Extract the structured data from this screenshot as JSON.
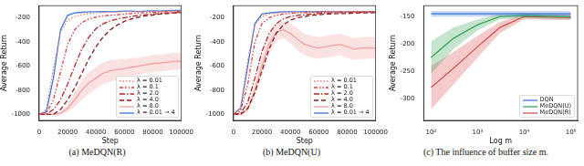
{
  "chart_data": [
    {
      "type": "line",
      "title": "(a) MeDQN(R)",
      "x_label": "Step",
      "y_label": "Average Return",
      "x": [
        0,
        5000,
        10000,
        15000,
        20000,
        25000,
        30000,
        35000,
        40000,
        45000,
        50000,
        55000,
        60000,
        65000,
        70000,
        75000,
        80000,
        85000,
        90000,
        95000,
        100000
      ],
      "xlim": [
        0,
        100000
      ],
      "xticks": [
        0,
        20000,
        40000,
        60000,
        80000,
        100000
      ],
      "ylim": [
        -1050,
        -100
      ],
      "yticks": [
        -1000,
        -800,
        -600,
        -400,
        -200
      ],
      "grid": false,
      "legend": "lower right",
      "series": [
        {
          "name": "λ = 0.01",
          "color": "#f07c7c",
          "line_style": "dotted",
          "values": [
            -1000,
            -960,
            -620,
            -320,
            -220,
            -190,
            -175,
            -165,
            -160,
            -158,
            -155,
            -152,
            -150,
            -150,
            -150,
            -148,
            -147,
            -145,
            -145,
            -145,
            -145
          ]
        },
        {
          "name": "λ = 0.1",
          "color": "#e03a3a",
          "line_style": "dashdotdot",
          "values": [
            -1000,
            -990,
            -880,
            -650,
            -420,
            -300,
            -240,
            -210,
            -195,
            -185,
            -180,
            -175,
            -170,
            -165,
            -160,
            -158,
            -155,
            -152,
            -150,
            -150,
            -148
          ]
        },
        {
          "name": "λ = 2.0",
          "color": "#b82525",
          "line_style": "dashdot",
          "values": [
            -1000,
            -1000,
            -960,
            -880,
            -750,
            -600,
            -460,
            -360,
            -290,
            -250,
            -225,
            -210,
            -200,
            -190,
            -180,
            -175,
            -170,
            -165,
            -160,
            -158,
            -155
          ]
        },
        {
          "name": "λ = 4.0",
          "color": "#8c1a1a",
          "line_style": "dashed",
          "values": [
            -1000,
            -1000,
            -1000,
            -960,
            -880,
            -780,
            -660,
            -540,
            -440,
            -360,
            -300,
            -260,
            -230,
            -210,
            -195,
            -185,
            -178,
            -170,
            -165,
            -160,
            -158
          ]
        },
        {
          "name": "λ = 8.0",
          "color": "#f2a0a0",
          "line_style": "solid",
          "values": [
            -1000,
            -1000,
            -1000,
            -990,
            -950,
            -880,
            -800,
            -740,
            -700,
            -660,
            -640,
            -630,
            -620,
            -610,
            -600,
            -590,
            -580,
            -575,
            -570,
            -560,
            -560
          ],
          "error": [
            0,
            0,
            0,
            10,
            30,
            60,
            80,
            90,
            90,
            90,
            90,
            85,
            80,
            75,
            70,
            70,
            70,
            70,
            70,
            70,
            70
          ]
        },
        {
          "name": "λ = 0.01 → 4",
          "color": "#3c78d8",
          "line_style": "solid",
          "values": [
            -1000,
            -980,
            -700,
            -300,
            -180,
            -160,
            -155,
            -150,
            -150,
            -148,
            -150,
            -148,
            -145,
            -145,
            -148,
            -145,
            -143,
            -145,
            -142,
            -140,
            -140
          ]
        }
      ]
    },
    {
      "type": "line",
      "title": "(b) MeDQN(U)",
      "x_label": "Step",
      "y_label": "Average Return",
      "x": [
        0,
        5000,
        10000,
        15000,
        20000,
        25000,
        30000,
        35000,
        40000,
        45000,
        50000,
        55000,
        60000,
        65000,
        70000,
        75000,
        80000,
        85000,
        90000,
        95000,
        100000
      ],
      "xlim": [
        0,
        100000
      ],
      "xticks": [
        0,
        20000,
        40000,
        60000,
        80000,
        100000
      ],
      "ylim": [
        -1050,
        -100
      ],
      "yticks": [
        -1000,
        -800,
        -600,
        -400,
        -200
      ],
      "grid": false,
      "legend": "lower right",
      "series": [
        {
          "name": "λ = 0.01",
          "color": "#f07c7c",
          "line_style": "dotted",
          "values": [
            -1000,
            -940,
            -550,
            -260,
            -190,
            -170,
            -160,
            -158,
            -155,
            -155,
            -152,
            -150,
            -150,
            -150,
            -152,
            -150,
            -150,
            -150,
            -150,
            -150,
            -150
          ]
        },
        {
          "name": "λ = 0.1",
          "color": "#e03a3a",
          "line_style": "dashdotdot",
          "values": [
            -1000,
            -970,
            -750,
            -400,
            -250,
            -200,
            -180,
            -170,
            -165,
            -160,
            -158,
            -155,
            -155,
            -152,
            -150,
            -150,
            -150,
            -150,
            -150,
            -150,
            -150
          ]
        },
        {
          "name": "λ = 2.0",
          "color": "#b82525",
          "line_style": "dashdot",
          "values": [
            -1000,
            -990,
            -900,
            -700,
            -480,
            -330,
            -250,
            -210,
            -190,
            -180,
            -175,
            -170,
            -165,
            -160,
            -160,
            -158,
            -155,
            -155,
            -155,
            -152,
            -150
          ]
        },
        {
          "name": "λ = 4.0",
          "color": "#8c1a1a",
          "line_style": "dashed",
          "values": [
            -1000,
            -1000,
            -950,
            -820,
            -640,
            -460,
            -330,
            -260,
            -220,
            -200,
            -190,
            -180,
            -175,
            -170,
            -168,
            -165,
            -165,
            -162,
            -160,
            -160,
            -158
          ]
        },
        {
          "name": "λ = 8.0",
          "color": "#f2a0a0",
          "line_style": "solid",
          "values": [
            -1000,
            -1000,
            -960,
            -800,
            -600,
            -420,
            -320,
            -300,
            -330,
            -380,
            -420,
            -440,
            -450,
            -440,
            -430,
            -420,
            -440,
            -460,
            -450,
            -450,
            -450
          ],
          "error": [
            0,
            0,
            20,
            60,
            80,
            80,
            70,
            70,
            80,
            90,
            90,
            90,
            90,
            90,
            90,
            90,
            90,
            90,
            90,
            90,
            90
          ]
        },
        {
          "name": "λ = 0.01 → 4",
          "color": "#3c78d8",
          "line_style": "solid",
          "values": [
            -1000,
            -950,
            -600,
            -250,
            -170,
            -160,
            -155,
            -150,
            -150,
            -150,
            -148,
            -150,
            -148,
            -150,
            -150,
            -150,
            -152,
            -150,
            -150,
            -150,
            -152
          ]
        }
      ]
    },
    {
      "type": "line",
      "title": "(c) The influence of buffer size m.",
      "x_label": "Log m",
      "y_label": "Average Return",
      "log": "x",
      "x": [
        100,
        300,
        1000,
        3000,
        10000,
        100000
      ],
      "xlim": [
        70,
        140000
      ],
      "xticks": [
        {
          "value": 100,
          "label": "10²"
        },
        {
          "value": 1000,
          "label": "10³"
        },
        {
          "value": 10000,
          "label": "10⁴"
        },
        {
          "value": 100000,
          "label": "10⁵"
        }
      ],
      "ylim": [
        -340,
        -130
      ],
      "yticks": [
        -300,
        -250,
        -200,
        -150
      ],
      "grid": false,
      "legend": "lower right",
      "series": [
        {
          "name": "DQN",
          "color": "#3c78d8",
          "line_style": "solid",
          "values": [
            -145,
            -145,
            -145,
            -145,
            -145,
            -145
          ],
          "error": [
            5,
            5,
            5,
            5,
            5,
            5
          ]
        },
        {
          "name": "MeDQN(U)",
          "color": "#3aa65a",
          "line_style": "solid",
          "values": [
            -225,
            -190,
            -165,
            -150,
            -148,
            -150
          ],
          "error": [
            30,
            20,
            10,
            5,
            5,
            5
          ]
        },
        {
          "name": "MeDQN(R)",
          "color": "#d9534f",
          "line_style": "solid",
          "values": [
            -280,
            -245,
            -205,
            -170,
            -150,
            -152
          ],
          "error": [
            40,
            30,
            20,
            10,
            5,
            5
          ]
        }
      ]
    }
  ]
}
